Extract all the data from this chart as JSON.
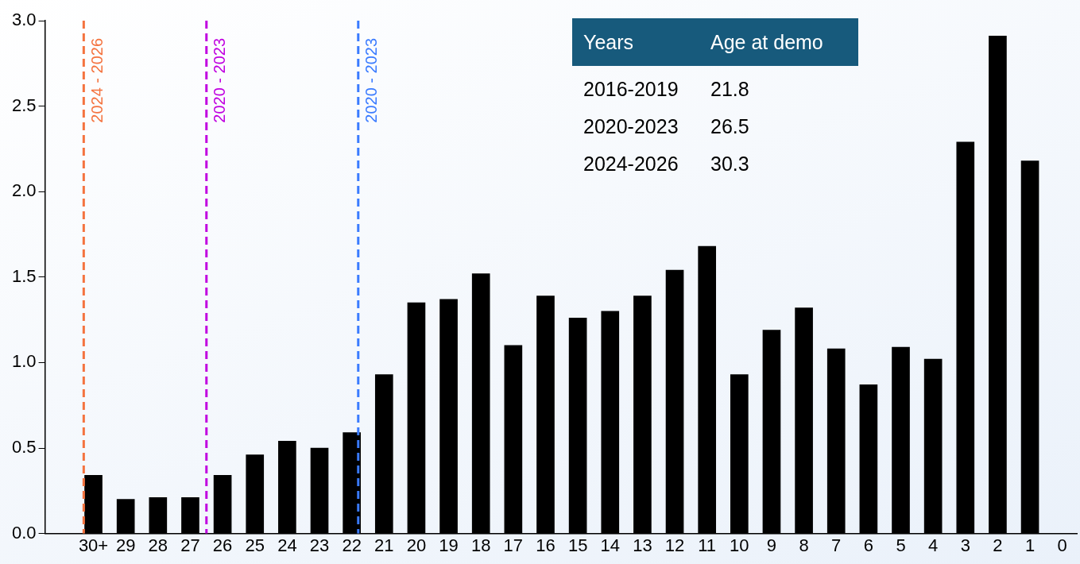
{
  "chart_data": {
    "type": "bar",
    "x": [
      30,
      29,
      28,
      27,
      26,
      25,
      24,
      23,
      22,
      21,
      20,
      19,
      18,
      17,
      16,
      15,
      14,
      13,
      12,
      11,
      10,
      9,
      8,
      7,
      6,
      5,
      4,
      3,
      2,
      1,
      0
    ],
    "values": [
      0.34,
      0.2,
      0.21,
      0.21,
      0.34,
      0.46,
      0.54,
      0.5,
      0.59,
      0.93,
      1.35,
      1.37,
      1.52,
      1.1,
      1.39,
      1.26,
      1.3,
      1.39,
      1.54,
      1.68,
      0.93,
      1.19,
      1.32,
      1.08,
      0.87,
      1.09,
      1.02,
      2.29,
      2.91,
      2.18,
      0
    ],
    "color": "#000000",
    "xlim": [
      31.5,
      -0.45
    ],
    "xticks": [
      {
        "value": 30,
        "label": "30+"
      },
      29,
      28,
      27,
      26,
      25,
      24,
      23,
      22,
      21,
      20,
      19,
      18,
      17,
      16,
      15,
      14,
      13,
      12,
      11,
      10,
      9,
      8,
      7,
      6,
      5,
      4,
      3,
      2,
      1,
      0
    ],
    "ylim": [
      0,
      3
    ],
    "yticks": [
      {
        "value": 0,
        "label": "0.0"
      },
      {
        "value": 0.5,
        "label": "0.5"
      },
      {
        "value": 1,
        "label": "1.0"
      },
      {
        "value": 1.5,
        "label": "1.5"
      },
      {
        "value": 2,
        "label": "2.0"
      },
      {
        "value": 2.5,
        "label": "2.5"
      },
      {
        "value": 3,
        "label": "3.0"
      }
    ],
    "grid": false,
    "legend": false,
    "ref_lines": [
      {
        "axis": "x",
        "value": 30.3,
        "color": "#f4733f",
        "line_style": "dashed"
      },
      {
        "axis": "x",
        "value": 26.5,
        "color": "#c000e0",
        "line_style": "dashed"
      },
      {
        "axis": "x",
        "value": 21.8,
        "color": "#3a7bff",
        "line_style": "dashed"
      }
    ],
    "annotations": [
      {
        "text": "2024 - 2026",
        "x": 30.3,
        "y": 2.65
      },
      {
        "text": "2020 - 2023",
        "x": 26.5,
        "y": 2.65
      },
      {
        "text": "2020 - 2023",
        "x": 21.8,
        "y": 2.65
      },
      "Years",
      "Age at demo",
      "2016-2019",
      "21.8",
      "2020-2023",
      "26.5",
      "2024-2026",
      "30.3"
    ]
  }
}
